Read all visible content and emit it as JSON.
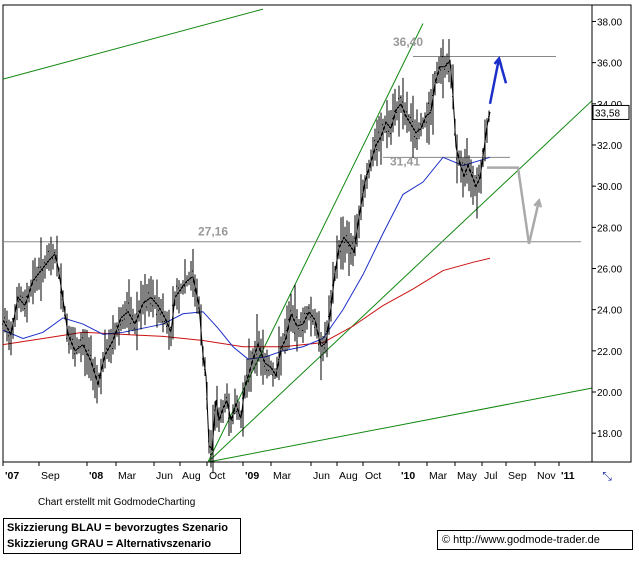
{
  "chart_data": {
    "type": "candlestick",
    "title": "",
    "xlabel": "",
    "ylabel": "",
    "ylim": [
      16.6,
      38.8
    ],
    "y_ticks": [
      "38.00",
      "36.00",
      "34.00",
      "32.00",
      "30.00",
      "28.00",
      "26.00",
      "24.00",
      "22.00",
      "20.00",
      "18.00"
    ],
    "y_tick_values": [
      38,
      36,
      34,
      32,
      30,
      28,
      26,
      24,
      22,
      20,
      18
    ],
    "x_ticks": [
      "'07",
      "Sep",
      "'08",
      "Mar",
      "Jun",
      "Aug",
      "Oct",
      "'09",
      "Mar",
      "Jun",
      "Aug",
      "Oct",
      "'10",
      "Mar",
      "May",
      "Jul",
      "Sep",
      "Nov",
      "'11"
    ],
    "x_tick_bold": [
      "'07",
      "'08",
      "'09",
      "'10",
      "'11"
    ],
    "current_price": "33,58",
    "current_price_value": 33.58,
    "annotations": [
      {
        "label": "36,40",
        "value": 36.4
      },
      {
        "label": "31,41",
        "value": 31.41
      },
      {
        "label": "27,16",
        "value": 27.16
      }
    ],
    "price_series": {
      "name": "",
      "color": "#000000",
      "points": [
        [
          0,
          23.5
        ],
        [
          8,
          22.8
        ],
        [
          15,
          24.6
        ],
        [
          22,
          24.2
        ],
        [
          30,
          25.4
        ],
        [
          38,
          25.9
        ],
        [
          46,
          26.4
        ],
        [
          52,
          26.7
        ],
        [
          55,
          26.1
        ],
        [
          60,
          24.5
        ],
        [
          65,
          22.8
        ],
        [
          72,
          22.0
        ],
        [
          80,
          22.3
        ],
        [
          88,
          21.5
        ],
        [
          95,
          20.4
        ],
        [
          102,
          21.8
        ],
        [
          110,
          22.5
        ],
        [
          118,
          23.6
        ],
        [
          125,
          23.9
        ],
        [
          132,
          23.3
        ],
        [
          140,
          24.3
        ],
        [
          148,
          24.6
        ],
        [
          155,
          24.2
        ],
        [
          162,
          23.6
        ],
        [
          168,
          22.9
        ],
        [
          172,
          24.6
        ],
        [
          178,
          25.0
        ],
        [
          184,
          25.4
        ],
        [
          190,
          25.6
        ],
        [
          196,
          24.2
        ],
        [
          200,
          21.8
        ],
        [
          203,
          20.8
        ],
        [
          206,
          17.4
        ],
        [
          209,
          17.2
        ],
        [
          213,
          19.6
        ],
        [
          216,
          18.6
        ],
        [
          220,
          19.2
        ],
        [
          224,
          19.6
        ],
        [
          228,
          18.6
        ],
        [
          233,
          19.4
        ],
        [
          238,
          18.7
        ],
        [
          242,
          20.3
        ],
        [
          246,
          20.9
        ],
        [
          250,
          21.6
        ],
        [
          255,
          22.3
        ],
        [
          262,
          21.4
        ],
        [
          268,
          21.2
        ],
        [
          273,
          20.8
        ],
        [
          278,
          22.1
        ],
        [
          283,
          22.6
        ],
        [
          288,
          23.8
        ],
        [
          294,
          23.2
        ],
        [
          300,
          23.3
        ],
        [
          306,
          23.9
        ],
        [
          312,
          23.5
        ],
        [
          318,
          22.2
        ],
        [
          323,
          22.4
        ],
        [
          328,
          24.1
        ],
        [
          332,
          25.8
        ],
        [
          336,
          27.0
        ],
        [
          341,
          27.5
        ],
        [
          346,
          27.2
        ],
        [
          351,
          26.8
        ],
        [
          356,
          28.5
        ],
        [
          362,
          30.2
        ],
        [
          368,
          31.2
        ],
        [
          373,
          32.0
        ],
        [
          378,
          32.4
        ],
        [
          383,
          33.1
        ],
        [
          388,
          32.8
        ],
        [
          393,
          33.7
        ],
        [
          398,
          34.0
        ],
        [
          403,
          33.4
        ],
        [
          408,
          33.0
        ],
        [
          413,
          32.6
        ],
        [
          418,
          32.8
        ],
        [
          423,
          33.4
        ],
        [
          428,
          33.6
        ],
        [
          432,
          35.0
        ],
        [
          437,
          35.8
        ],
        [
          442,
          35.8
        ],
        [
          447,
          36.1
        ],
        [
          450,
          34.4
        ],
        [
          453,
          31.9
        ],
        [
          457,
          31.1
        ],
        [
          461,
          30.5
        ],
        [
          465,
          31.0
        ],
        [
          469,
          30.5
        ],
        [
          473,
          30.0
        ],
        [
          477,
          30.4
        ],
        [
          481,
          31.8
        ],
        [
          484,
          32.9
        ],
        [
          487,
          33.6
        ]
      ]
    },
    "ma_blue": {
      "name": "",
      "color": "#1c2fc8",
      "points": [
        [
          0,
          23.0
        ],
        [
          20,
          22.6
        ],
        [
          40,
          22.9
        ],
        [
          60,
          23.6
        ],
        [
          80,
          23.3
        ],
        [
          100,
          22.8
        ],
        [
          120,
          22.9
        ],
        [
          140,
          23.1
        ],
        [
          160,
          23.3
        ],
        [
          180,
          23.8
        ],
        [
          200,
          23.9
        ],
        [
          215,
          23.1
        ],
        [
          230,
          22.2
        ],
        [
          245,
          21.6
        ],
        [
          262,
          21.7
        ],
        [
          280,
          22.0
        ],
        [
          300,
          22.2
        ],
        [
          320,
          22.6
        ],
        [
          340,
          24.0
        ],
        [
          360,
          25.7
        ],
        [
          380,
          27.7
        ],
        [
          400,
          29.6
        ],
        [
          420,
          30.2
        ],
        [
          440,
          31.4
        ],
        [
          460,
          31.0
        ],
        [
          487,
          31.4
        ]
      ]
    },
    "ma_red": {
      "name": "",
      "color": "#cc1111",
      "points": [
        [
          0,
          22.3
        ],
        [
          40,
          22.6
        ],
        [
          80,
          22.9
        ],
        [
          120,
          22.8
        ],
        [
          160,
          22.7
        ],
        [
          200,
          22.5
        ],
        [
          240,
          22.2
        ],
        [
          280,
          22.2
        ],
        [
          320,
          22.4
        ],
        [
          350,
          23.2
        ],
        [
          380,
          24.2
        ],
        [
          410,
          25.0
        ],
        [
          440,
          25.9
        ],
        [
          470,
          26.3
        ],
        [
          487,
          26.5
        ]
      ]
    },
    "scenario_blue": {
      "name": "",
      "color": "#1c2fc8",
      "points": [
        [
          487,
          34.0
        ],
        [
          496,
          36.2
        ],
        [
          503,
          35.0
        ]
      ]
    },
    "scenario_gray": {
      "name": "",
      "color": "#aaaaaa",
      "points": [
        [
          484,
          30.9
        ],
        [
          515,
          30.9
        ],
        [
          526,
          27.2
        ],
        [
          536,
          29.3
        ]
      ]
    },
    "trend_lines": [
      {
        "color": "#118811",
        "from": [
          0,
          35.2
        ],
        "to": [
          260,
          38.6
        ]
      },
      {
        "color": "#118811",
        "from": [
          205,
          16.6
        ],
        "to": [
          420,
          37.9
        ]
      },
      {
        "color": "#118811",
        "from": [
          205,
          16.6
        ],
        "to": [
          590,
          34.2
        ]
      },
      {
        "color": "#118811",
        "from": [
          205,
          16.6
        ],
        "to": [
          590,
          20.2
        ]
      },
      {
        "color": "#888888",
        "from": [
          410,
          36.3
        ],
        "to": [
          553,
          36.3
        ]
      },
      {
        "color": "#888888",
        "from": [
          380,
          31.4
        ],
        "to": [
          507,
          31.4
        ]
      },
      {
        "color": "#888888",
        "from": [
          0,
          27.3
        ],
        "to": [
          578,
          27.3
        ]
      }
    ]
  },
  "footer": {
    "credit": "Chart erstellt mit GodmodeCharting",
    "legend_lines": [
      "Skizzierung BLAU = bevorzugtes Szenario",
      "Skizzierung GRAU = Alternativszenario"
    ],
    "source": "© http://www.godmode-trader.de"
  }
}
